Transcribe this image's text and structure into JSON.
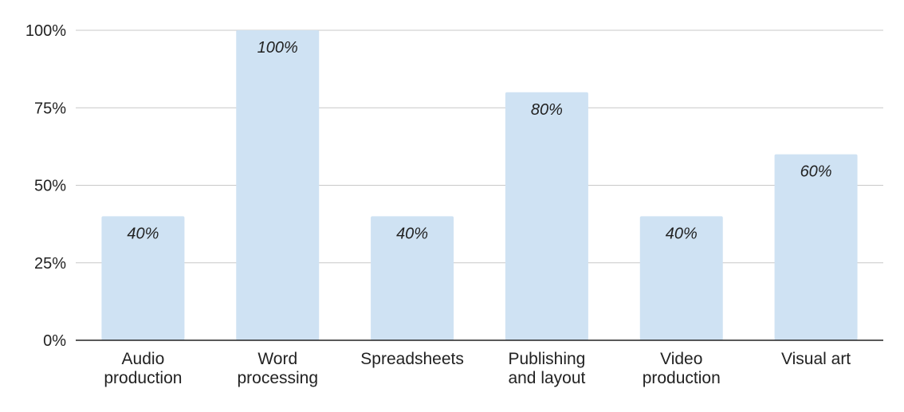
{
  "chart_data": {
    "type": "bar",
    "categories": [
      [
        "Audio",
        "production"
      ],
      [
        "Word",
        "processing"
      ],
      [
        "Spreadsheets"
      ],
      [
        "Publishing",
        "and layout"
      ],
      [
        "Video",
        "production"
      ],
      [
        "Visual art"
      ]
    ],
    "values": [
      40,
      100,
      40,
      80,
      40,
      60
    ],
    "data_labels": [
      "40%",
      "100%",
      "40%",
      "80%",
      "40%",
      "60%"
    ],
    "y_ticks": [
      0,
      25,
      50,
      75,
      100
    ],
    "y_tick_labels": [
      "0%",
      "25%",
      "50%",
      "75%",
      "100%"
    ],
    "ylim": [
      0,
      100
    ],
    "title": "",
    "xlabel": "",
    "ylabel": "",
    "grid": true,
    "legend": "none",
    "colors": {
      "bar": "#cfe2f3",
      "grid": "#c8c8c8",
      "axis": "#222222",
      "text": "#222222"
    }
  }
}
